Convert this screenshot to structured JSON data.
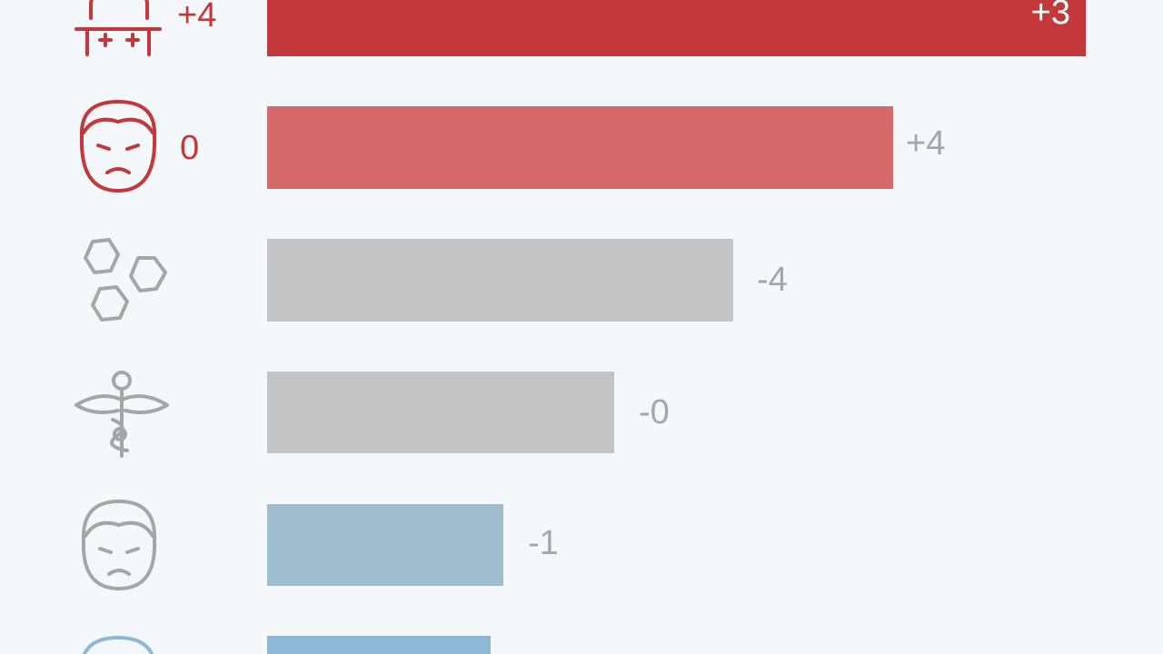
{
  "rows": [
    {
      "side_label": "+4",
      "bar_label": "+3"
    },
    {
      "side_label": "0",
      "bar_label": "+4"
    },
    {
      "bar_label": "-4"
    },
    {
      "bar_label": "-0"
    },
    {
      "bar_label": "-1"
    }
  ]
}
